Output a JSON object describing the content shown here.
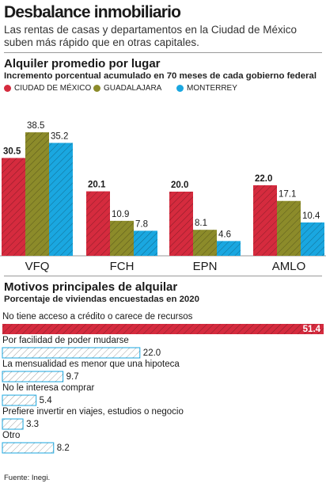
{
  "title": "Desbalance inmobiliario",
  "subtitle": "Las rentas de casas y departamentos en la Ciudad de México suben más rápido que en otras capitales.",
  "colors": {
    "cdmx": "#d52b3e",
    "guadalajara": "#8c8b2a",
    "monterrey": "#1aa7e0",
    "hatch": "#000000"
  },
  "chart_data": [
    {
      "type": "bar",
      "title": "Alquiler promedio por lugar",
      "subtitle": "Incremento porcentual acumulado en 70 meses de cada gobierno federal",
      "categories": [
        "VFQ",
        "FCH",
        "EPN",
        "AMLO"
      ],
      "series": [
        {
          "name": "CIUDAD DE MÉXICO",
          "values": [
            30.5,
            20.1,
            20.0,
            22.0
          ]
        },
        {
          "name": "GUADALAJARA",
          "values": [
            38.5,
            10.9,
            8.1,
            17.1
          ]
        },
        {
          "name": "MONTERREY",
          "values": [
            35.2,
            7.8,
            4.6,
            10.4
          ]
        }
      ],
      "value_labels": [
        [
          "30.5",
          "20.1",
          "20.0",
          "22.0"
        ],
        [
          "38.5",
          "10.9",
          "8.1",
          "17.1"
        ],
        [
          "35.2",
          "7.8",
          "4.6",
          "10.4"
        ]
      ],
      "legend": "top",
      "grid": false
    },
    {
      "type": "bar",
      "orientation": "horizontal",
      "title": "Motivos principales de alquilar",
      "subtitle": "Porcentaje de viviendas encuestadas en 2020",
      "categories": [
        "No tiene acceso a crédito o carece de recursos",
        "Por facilidad de poder mudarse",
        "La mensualidad es menor que una hipoteca",
        "No le interesa comprar",
        "Prefiere invertir en viajes, estudios o negocio",
        "Otro"
      ],
      "values": [
        51.4,
        22.0,
        9.7,
        5.4,
        3.3,
        8.2
      ],
      "value_labels": [
        "51.4",
        "22.0",
        "9.7",
        "5.4",
        "3.3",
        "8.2"
      ],
      "grid": false
    }
  ],
  "source": "Fuente: Inegi."
}
